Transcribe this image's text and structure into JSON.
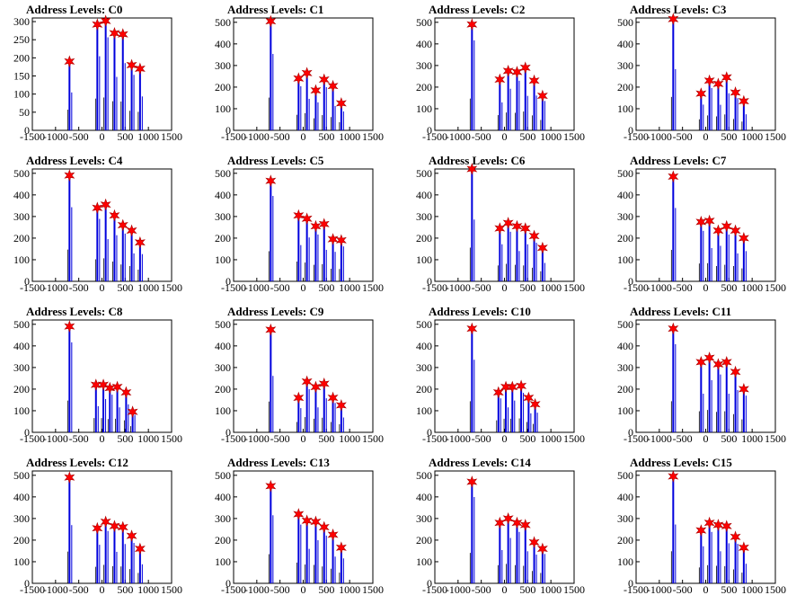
{
  "figure": {
    "title_prefix": "Address Levels: ",
    "colors": {
      "histogram": "#0000dd",
      "peak_marker": "#ff0000",
      "frame": "#000000"
    },
    "marker_shape": "star"
  },
  "chart_data": [
    {
      "type": "bar",
      "title": "Address Levels: C0",
      "xlim": [
        -1500,
        1500
      ],
      "ylim": [
        0,
        310
      ],
      "xticks": [
        -1500,
        -1000,
        -500,
        0,
        500,
        1000,
        1500
      ],
      "xtick_labels": [
        "-1500",
        "-1000",
        "-500",
        "0",
        "500",
        "1000",
        "1500"
      ],
      "yticks": [
        0,
        50,
        100,
        150,
        200,
        250,
        300
      ],
      "peaks": [
        {
          "x": -700,
          "y": 190
        },
        {
          "x": -100,
          "y": 292
        },
        {
          "x": 80,
          "y": 302
        },
        {
          "x": 270,
          "y": 268
        },
        {
          "x": 450,
          "y": 265
        },
        {
          "x": 640,
          "y": 180
        },
        {
          "x": 820,
          "y": 170
        }
      ]
    },
    {
      "type": "bar",
      "title": "Address Levels: C1",
      "xlim": [
        -1500,
        1500
      ],
      "ylim": [
        0,
        520
      ],
      "xticks": [
        -1500,
        -1000,
        -500,
        0,
        500,
        1000,
        1500
      ],
      "xtick_labels": [
        "-1500",
        "-1000",
        "-500",
        "0",
        "500",
        "1000",
        "1500"
      ],
      "yticks": [
        0,
        100,
        200,
        300,
        400,
        500
      ],
      "peaks": [
        {
          "x": -700,
          "y": 505
        },
        {
          "x": -100,
          "y": 240
        },
        {
          "x": 80,
          "y": 265
        },
        {
          "x": 270,
          "y": 185
        },
        {
          "x": 450,
          "y": 235
        },
        {
          "x": 640,
          "y": 205
        },
        {
          "x": 820,
          "y": 125
        }
      ]
    },
    {
      "type": "bar",
      "title": "Address Levels: C2",
      "xlim": [
        -1500,
        1500
      ],
      "ylim": [
        0,
        520
      ],
      "xticks": [
        -1500,
        -1000,
        -500,
        0,
        500,
        1000,
        1500
      ],
      "xtick_labels": [
        "-1500",
        "-1000",
        "-500",
        "0",
        "500",
        "1000",
        "1500"
      ],
      "yticks": [
        0,
        100,
        200,
        300,
        400,
        500
      ],
      "peaks": [
        {
          "x": -700,
          "y": 490
        },
        {
          "x": -100,
          "y": 235
        },
        {
          "x": 80,
          "y": 275
        },
        {
          "x": 270,
          "y": 270
        },
        {
          "x": 450,
          "y": 290
        },
        {
          "x": 640,
          "y": 230
        },
        {
          "x": 820,
          "y": 160
        }
      ]
    },
    {
      "type": "bar",
      "title": "Address Levels: C3",
      "xlim": [
        -1500,
        1500
      ],
      "ylim": [
        0,
        520
      ],
      "xticks": [
        -1500,
        -1000,
        -500,
        0,
        500,
        1000,
        1500
      ],
      "xtick_labels": [
        "-1500",
        "-1000",
        "-500",
        "0",
        "500",
        "1000",
        "1500"
      ],
      "yticks": [
        0,
        100,
        200,
        300,
        400,
        500
      ],
      "peaks": [
        {
          "x": -700,
          "y": 515
        },
        {
          "x": -100,
          "y": 170
        },
        {
          "x": 80,
          "y": 230
        },
        {
          "x": 270,
          "y": 215
        },
        {
          "x": 450,
          "y": 245
        },
        {
          "x": 640,
          "y": 175
        },
        {
          "x": 820,
          "y": 135
        }
      ]
    },
    {
      "type": "bar",
      "title": "Address Levels: C4",
      "xlim": [
        -1500,
        1500
      ],
      "ylim": [
        0,
        520
      ],
      "xticks": [
        -1500,
        -1000,
        -500,
        0,
        500,
        1000,
        1500
      ],
      "xtick_labels": [
        "-1500",
        "-1000",
        "-500",
        "0",
        "500",
        "1000",
        "1500"
      ],
      "yticks": [
        0,
        100,
        200,
        300,
        400,
        500
      ],
      "peaks": [
        {
          "x": -700,
          "y": 490
        },
        {
          "x": -100,
          "y": 340
        },
        {
          "x": 80,
          "y": 355
        },
        {
          "x": 270,
          "y": 305
        },
        {
          "x": 450,
          "y": 260
        },
        {
          "x": 640,
          "y": 235
        },
        {
          "x": 820,
          "y": 180
        }
      ]
    },
    {
      "type": "bar",
      "title": "Address Levels: C5",
      "xlim": [
        -1500,
        1500
      ],
      "ylim": [
        0,
        520
      ],
      "xticks": [
        -1500,
        -1000,
        -500,
        0,
        500,
        1000,
        1500
      ],
      "xtick_labels": [
        "-1500",
        "-1000",
        "-500",
        "0",
        "500",
        "1000",
        "1500"
      ],
      "yticks": [
        0,
        100,
        200,
        300,
        400,
        500
      ],
      "peaks": [
        {
          "x": -700,
          "y": 465
        },
        {
          "x": -100,
          "y": 305
        },
        {
          "x": 80,
          "y": 290
        },
        {
          "x": 270,
          "y": 255
        },
        {
          "x": 450,
          "y": 265
        },
        {
          "x": 640,
          "y": 195
        },
        {
          "x": 820,
          "y": 190
        }
      ]
    },
    {
      "type": "bar",
      "title": "Address Levels: C6",
      "xlim": [
        -1500,
        1500
      ],
      "ylim": [
        0,
        520
      ],
      "xticks": [
        -1500,
        -1000,
        -500,
        0,
        500,
        1000,
        1500
      ],
      "xtick_labels": [
        "-1500",
        "-1000",
        "-500",
        "0",
        "500",
        "1000",
        "1500"
      ],
      "yticks": [
        0,
        100,
        200,
        300,
        400,
        500
      ],
      "peaks": [
        {
          "x": -700,
          "y": 520
        },
        {
          "x": -100,
          "y": 245
        },
        {
          "x": 80,
          "y": 270
        },
        {
          "x": 270,
          "y": 255
        },
        {
          "x": 450,
          "y": 245
        },
        {
          "x": 640,
          "y": 210
        },
        {
          "x": 820,
          "y": 155
        }
      ]
    },
    {
      "type": "bar",
      "title": "Address Levels: C7",
      "xlim": [
        -1500,
        1500
      ],
      "ylim": [
        0,
        520
      ],
      "xticks": [
        -1500,
        -1000,
        -500,
        0,
        500,
        1000,
        1500
      ],
      "xtick_labels": [
        "-1500",
        "-1000",
        "-500",
        "0",
        "500",
        "1000",
        "1500"
      ],
      "yticks": [
        0,
        100,
        200,
        300,
        400,
        500
      ],
      "peaks": [
        {
          "x": -700,
          "y": 485
        },
        {
          "x": -100,
          "y": 275
        },
        {
          "x": 80,
          "y": 280
        },
        {
          "x": 270,
          "y": 235
        },
        {
          "x": 450,
          "y": 255
        },
        {
          "x": 640,
          "y": 235
        },
        {
          "x": 820,
          "y": 200
        }
      ]
    },
    {
      "type": "bar",
      "title": "Address Levels: C8",
      "xlim": [
        -1500,
        1500
      ],
      "ylim": [
        0,
        520
      ],
      "xticks": [
        -1500,
        -1000,
        -500,
        0,
        500,
        1000,
        1500
      ],
      "xtick_labels": [
        "-1500",
        "-1000",
        "-500",
        "0",
        "500",
        "1000",
        "1500"
      ],
      "yticks": [
        0,
        100,
        200,
        300,
        400,
        500
      ],
      "peaks": [
        {
          "x": -700,
          "y": 490
        },
        {
          "x": -130,
          "y": 220
        },
        {
          "x": 30,
          "y": 220
        },
        {
          "x": 170,
          "y": 205
        },
        {
          "x": 330,
          "y": 210
        },
        {
          "x": 520,
          "y": 185
        },
        {
          "x": 660,
          "y": 95
        }
      ]
    },
    {
      "type": "bar",
      "title": "Address Levels: C9",
      "xlim": [
        -1500,
        1500
      ],
      "ylim": [
        0,
        520
      ],
      "xticks": [
        -1500,
        -1000,
        -500,
        0,
        500,
        1000,
        1500
      ],
      "xtick_labels": [
        "-1500",
        "-1000",
        "-500",
        "0",
        "500",
        "1000",
        "1500"
      ],
      "yticks": [
        0,
        100,
        200,
        300,
        400,
        500
      ],
      "peaks": [
        {
          "x": -700,
          "y": 475
        },
        {
          "x": -100,
          "y": 160
        },
        {
          "x": 80,
          "y": 235
        },
        {
          "x": 270,
          "y": 210
        },
        {
          "x": 450,
          "y": 225
        },
        {
          "x": 640,
          "y": 160
        },
        {
          "x": 820,
          "y": 125
        }
      ]
    },
    {
      "type": "bar",
      "title": "Address Levels: C10",
      "xlim": [
        -1500,
        1500
      ],
      "ylim": [
        0,
        520
      ],
      "xticks": [
        -1500,
        -1000,
        -500,
        0,
        500,
        1000,
        1500
      ],
      "xtick_labels": [
        "-1500",
        "-1000",
        "-500",
        "0",
        "500",
        "1000",
        "1500"
      ],
      "yticks": [
        0,
        100,
        200,
        300,
        400,
        500
      ],
      "peaks": [
        {
          "x": -700,
          "y": 480
        },
        {
          "x": -130,
          "y": 185
        },
        {
          "x": 30,
          "y": 210
        },
        {
          "x": 170,
          "y": 210
        },
        {
          "x": 360,
          "y": 215
        },
        {
          "x": 520,
          "y": 160
        },
        {
          "x": 660,
          "y": 130
        }
      ]
    },
    {
      "type": "bar",
      "title": "Address Levels: C11",
      "xlim": [
        -1500,
        1500
      ],
      "ylim": [
        0,
        520
      ],
      "xticks": [
        -1500,
        -1000,
        -500,
        0,
        500,
        1000,
        1500
      ],
      "xtick_labels": [
        "-1500",
        "-1000",
        "-500",
        "0",
        "500",
        "1000",
        "1500"
      ],
      "yticks": [
        0,
        100,
        200,
        300,
        400,
        500
      ],
      "peaks": [
        {
          "x": -700,
          "y": 480
        },
        {
          "x": -100,
          "y": 325
        },
        {
          "x": 80,
          "y": 345
        },
        {
          "x": 270,
          "y": 315
        },
        {
          "x": 450,
          "y": 325
        },
        {
          "x": 640,
          "y": 280
        },
        {
          "x": 820,
          "y": 200
        }
      ]
    },
    {
      "type": "bar",
      "title": "Address Levels: C12",
      "xlim": [
        -1500,
        1500
      ],
      "ylim": [
        0,
        520
      ],
      "xticks": [
        -1500,
        -1000,
        -500,
        0,
        500,
        1000,
        1500
      ],
      "xtick_labels": [
        "-1500",
        "-1000",
        "-500",
        "0",
        "500",
        "1000",
        "1500"
      ],
      "yticks": [
        0,
        100,
        200,
        300,
        400,
        500
      ],
      "peaks": [
        {
          "x": -700,
          "y": 490
        },
        {
          "x": -100,
          "y": 255
        },
        {
          "x": 80,
          "y": 285
        },
        {
          "x": 270,
          "y": 265
        },
        {
          "x": 450,
          "y": 260
        },
        {
          "x": 640,
          "y": 220
        },
        {
          "x": 820,
          "y": 160
        }
      ]
    },
    {
      "type": "bar",
      "title": "Address Levels: C13",
      "xlim": [
        -1500,
        1500
      ],
      "ylim": [
        0,
        520
      ],
      "xticks": [
        -1500,
        -1000,
        -500,
        0,
        500,
        1000,
        1500
      ],
      "xtick_labels": [
        "-1500",
        "-1000",
        "-500",
        "0",
        "500",
        "1000",
        "1500"
      ],
      "yticks": [
        0,
        100,
        200,
        300,
        400,
        500
      ],
      "peaks": [
        {
          "x": -700,
          "y": 450
        },
        {
          "x": -100,
          "y": 320
        },
        {
          "x": 80,
          "y": 290
        },
        {
          "x": 270,
          "y": 285
        },
        {
          "x": 450,
          "y": 260
        },
        {
          "x": 640,
          "y": 225
        },
        {
          "x": 820,
          "y": 165
        }
      ]
    },
    {
      "type": "bar",
      "title": "Address Levels: C14",
      "xlim": [
        -1500,
        1500
      ],
      "ylim": [
        0,
        520
      ],
      "xticks": [
        -1500,
        -1000,
        -500,
        0,
        500,
        1000,
        1500
      ],
      "xtick_labels": [
        "-1500",
        "-1000",
        "-500",
        "0",
        "500",
        "1000",
        "1500"
      ],
      "yticks": [
        0,
        100,
        200,
        300,
        400,
        500
      ],
      "peaks": [
        {
          "x": -700,
          "y": 470
        },
        {
          "x": -100,
          "y": 280
        },
        {
          "x": 80,
          "y": 300
        },
        {
          "x": 270,
          "y": 280
        },
        {
          "x": 450,
          "y": 270
        },
        {
          "x": 640,
          "y": 190
        },
        {
          "x": 820,
          "y": 160
        }
      ]
    },
    {
      "type": "bar",
      "title": "Address Levels: C15",
      "xlim": [
        -1500,
        1500
      ],
      "ylim": [
        0,
        520
      ],
      "xticks": [
        -1500,
        -1000,
        -500,
        0,
        500,
        1000,
        1500
      ],
      "xtick_labels": [
        "-1500",
        "-1000",
        "-500",
        "0",
        "500",
        "1000",
        "1500"
      ],
      "yticks": [
        0,
        100,
        200,
        300,
        400,
        500
      ],
      "peaks": [
        {
          "x": -700,
          "y": 495
        },
        {
          "x": -100,
          "y": 245
        },
        {
          "x": 80,
          "y": 280
        },
        {
          "x": 270,
          "y": 270
        },
        {
          "x": 450,
          "y": 265
        },
        {
          "x": 640,
          "y": 215
        },
        {
          "x": 820,
          "y": 165
        }
      ]
    }
  ]
}
